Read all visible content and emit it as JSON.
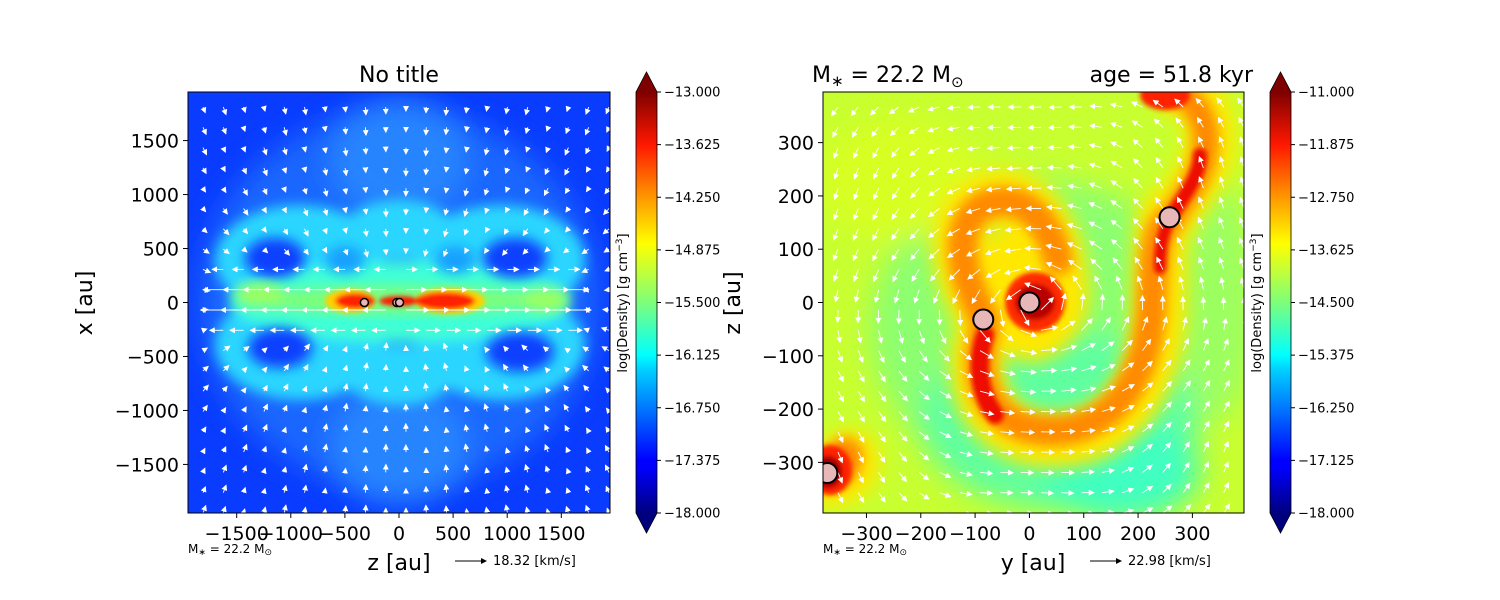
{
  "chart_data": [
    {
      "type": "heatmap",
      "title": "No title",
      "xlabel": "z [au]",
      "ylabel": "x [au]",
      "xlim": [
        -1950,
        1950
      ],
      "ylim": [
        -1950,
        1950
      ],
      "xticks": [
        -1500,
        -1000,
        -500,
        0,
        500,
        1000,
        1500
      ],
      "yticks": [
        -1500,
        -1000,
        -500,
        0,
        500,
        1000,
        1500
      ],
      "colorbar": {
        "label": "log(Density) [g cm$^{-3}$]",
        "label_main": "log(Density) [g cm",
        "label_exp": "−3",
        "label_end": "]",
        "min": -18.0,
        "max": -13.0,
        "ticks": [
          "−13.000",
          "−13.625",
          "−14.250",
          "−14.875",
          "−15.500",
          "−16.125",
          "−16.750",
          "−17.375",
          "−18.000"
        ]
      },
      "mass_label": "M",
      "mass_sub": "∗",
      "mass_value": " = 22.2 M",
      "mass_sun": "⊙",
      "arrow_label": "18.32 [km/s]",
      "sinks": [
        {
          "x": -320,
          "y": 0,
          "size": "small"
        },
        {
          "x": -20,
          "y": 0,
          "size": "small"
        },
        {
          "x": 5,
          "y": 0,
          "size": "small"
        }
      ]
    },
    {
      "type": "heatmap",
      "title_left": "M",
      "title_sub": "∗",
      "title_mid": " = 22.2 M",
      "title_sun": "⊙",
      "title_right": "age = 51.8 kyr",
      "xlabel": "y [au]",
      "ylabel": "z [au]",
      "xlim": [
        -380,
        395
      ],
      "ylim": [
        -395,
        395
      ],
      "xticks": [
        -300,
        -200,
        -100,
        0,
        100,
        200,
        300
      ],
      "yticks": [
        -300,
        -200,
        -100,
        0,
        100,
        200,
        300
      ],
      "colorbar": {
        "label": "log(Density) [g cm$^{-3}$]",
        "label_main": "log(Density) [g cm",
        "label_exp": "−3",
        "label_end": "]",
        "min": -18.0,
        "max": -11.0,
        "ticks": [
          "−11.000",
          "−11.875",
          "−12.750",
          "−13.625",
          "−14.500",
          "−15.375",
          "−16.250",
          "−17.125",
          "−18.000"
        ]
      },
      "mass_label": "M",
      "mass_sub": "∗",
      "mass_value": " = 22.2 M",
      "mass_sun": "⊙",
      "arrow_label": "22.98 [km/s]",
      "sinks": [
        {
          "x": 0,
          "y": 0,
          "size": "large"
        },
        {
          "x": -85,
          "y": -32,
          "size": "large"
        },
        {
          "x": 258,
          "y": 160,
          "size": "large"
        },
        {
          "x": -372,
          "y": -320,
          "size": "large"
        }
      ]
    }
  ]
}
